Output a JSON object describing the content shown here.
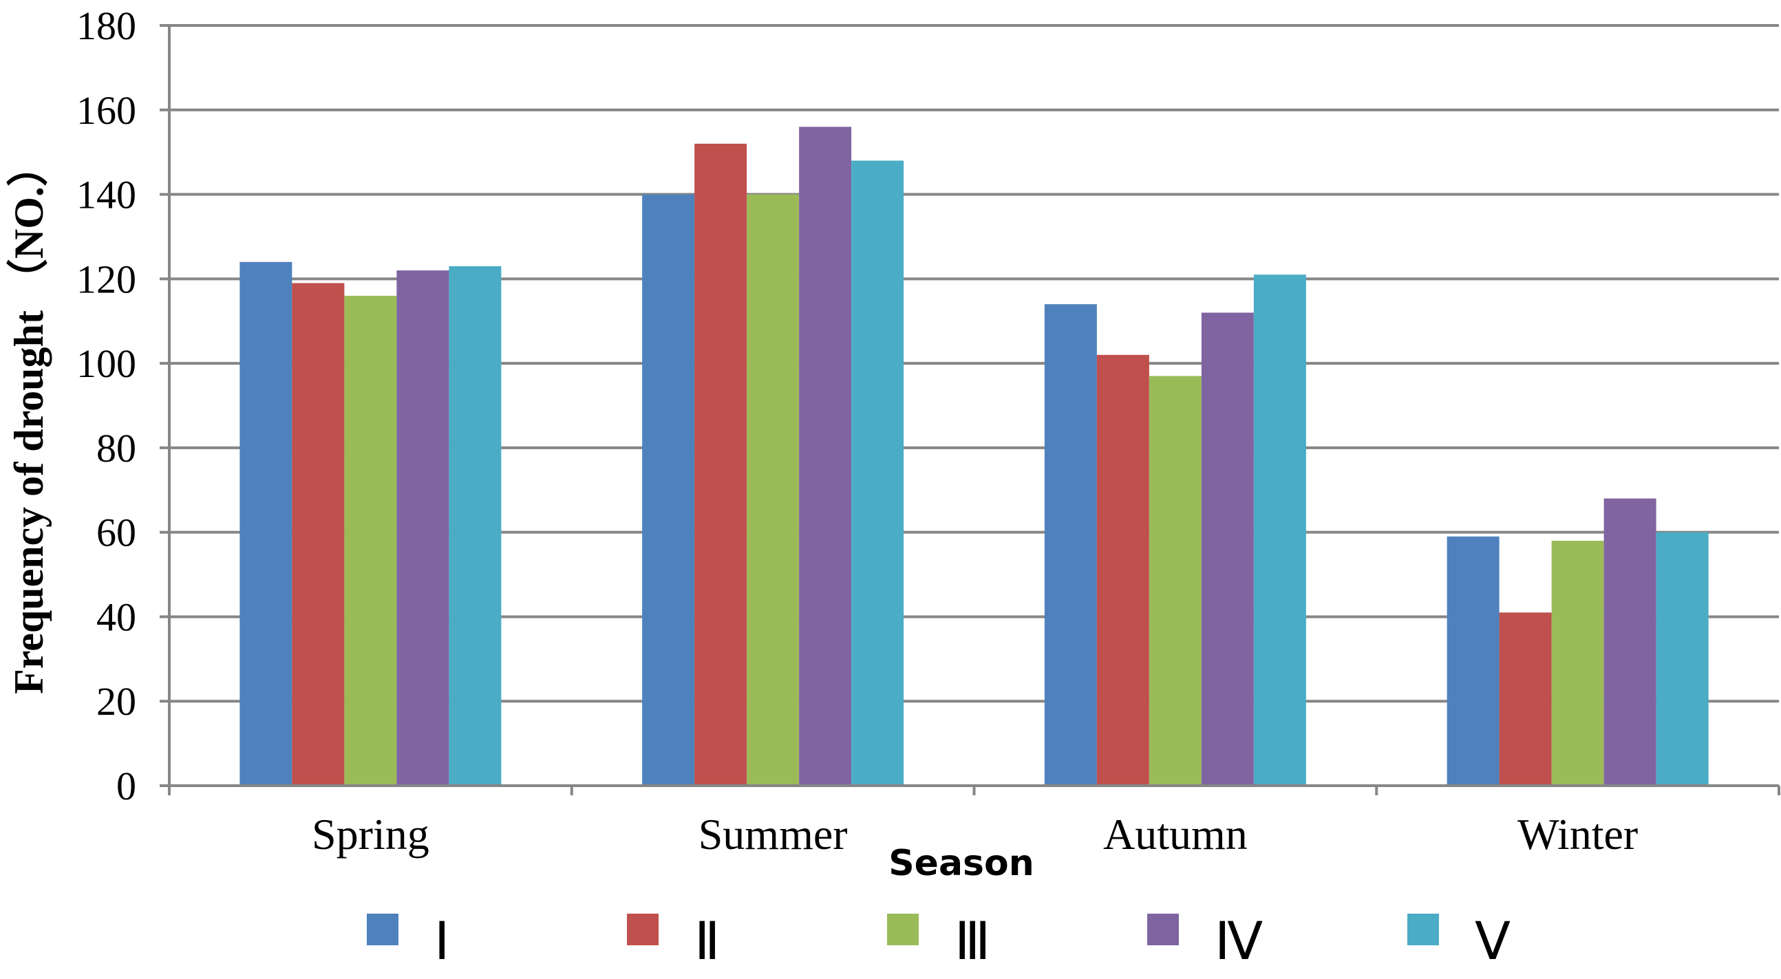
{
  "chart_data": {
    "type": "bar",
    "title": "",
    "xlabel": "Season",
    "ylabel": "Frequency of drought （NO.）",
    "ylim": [
      0,
      180
    ],
    "yticks": [
      0,
      20,
      40,
      60,
      80,
      100,
      120,
      140,
      160,
      180
    ],
    "grid": true,
    "legend_position": "bottom",
    "categories": [
      "Spring",
      "Summer",
      "Autumn",
      "Winter"
    ],
    "series": [
      {
        "name": "Ⅰ",
        "color": "#4F81BD",
        "values": [
          124,
          140,
          114,
          59
        ]
      },
      {
        "name": "Ⅱ",
        "color": "#C0504D",
        "values": [
          119,
          152,
          102,
          41
        ]
      },
      {
        "name": "Ⅲ",
        "color": "#9BBB59",
        "values": [
          116,
          140,
          97,
          58
        ]
      },
      {
        "name": "Ⅳ",
        "color": "#8064A2",
        "values": [
          122,
          156,
          112,
          68
        ]
      },
      {
        "name": "Ⅴ",
        "color": "#4BACC6",
        "values": [
          123,
          148,
          121,
          60
        ]
      }
    ]
  }
}
